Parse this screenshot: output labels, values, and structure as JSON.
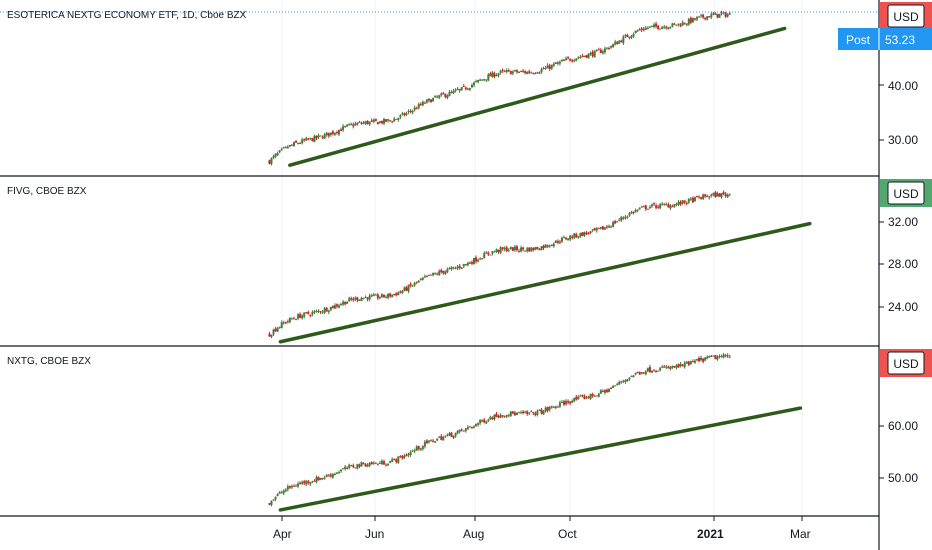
{
  "colors": {
    "up": "#26a69a",
    "down": "#ef5350",
    "candle_up": "#4a7a3a",
    "candle_down": "#c62828",
    "trendline": "#2d5a1b",
    "post_badge": "#2196f3",
    "usd_red": "#ef5350",
    "usd_green": "#52a86e",
    "divider": "#131722",
    "axis_text": "#131722"
  },
  "time_axis": {
    "labels": [
      "Apr",
      "Jun",
      "Aug",
      "Oct",
      "2021",
      "Mar"
    ],
    "bold_label": "2021"
  },
  "chart_data": [
    {
      "type": "candlestick",
      "title": "ESOTERICA NEXTG ECONOMY ETF, 1D, Cboe BZX",
      "currency": "USD",
      "post_label": "Post",
      "post_value": "53.23",
      "y_ticks": [
        "30.00",
        "40.00"
      ],
      "ylim": [
        23,
        55
      ],
      "x_start": "2020-03-24",
      "x_end": "2021-01-11",
      "close_start": 25.5,
      "close_end": 53.2,
      "trendline": {
        "from": [
          "2020-04-06",
          24.8
        ],
        "to": [
          "2021-02-15",
          49.8
        ]
      }
    },
    {
      "type": "candlestick",
      "title": "FIVG, CBOE BZX",
      "currency": "USD",
      "y_ticks": [
        "24.00",
        "28.00",
        "32.00"
      ],
      "ylim": [
        20.5,
        36
      ],
      "x_start": "2020-03-24",
      "x_end": "2021-01-11",
      "close_start": 21.5,
      "close_end": 34.8,
      "trendline": {
        "from": [
          "2020-03-31",
          20.8
        ],
        "to": [
          "2021-03-03",
          31.7
        ]
      }
    },
    {
      "type": "candlestick",
      "title": "NXTG, CBOE BZX",
      "currency": "USD",
      "y_ticks": [
        "50.00",
        "60.00"
      ],
      "ylim": [
        43,
        76
      ],
      "x_start": "2020-03-24",
      "x_end": "2021-01-11",
      "close_start": 45.5,
      "close_end": 75.0,
      "trendline": {
        "from": [
          "2020-03-31",
          44.0
        ],
        "to": [
          "2021-02-25",
          64.0
        ]
      }
    }
  ]
}
